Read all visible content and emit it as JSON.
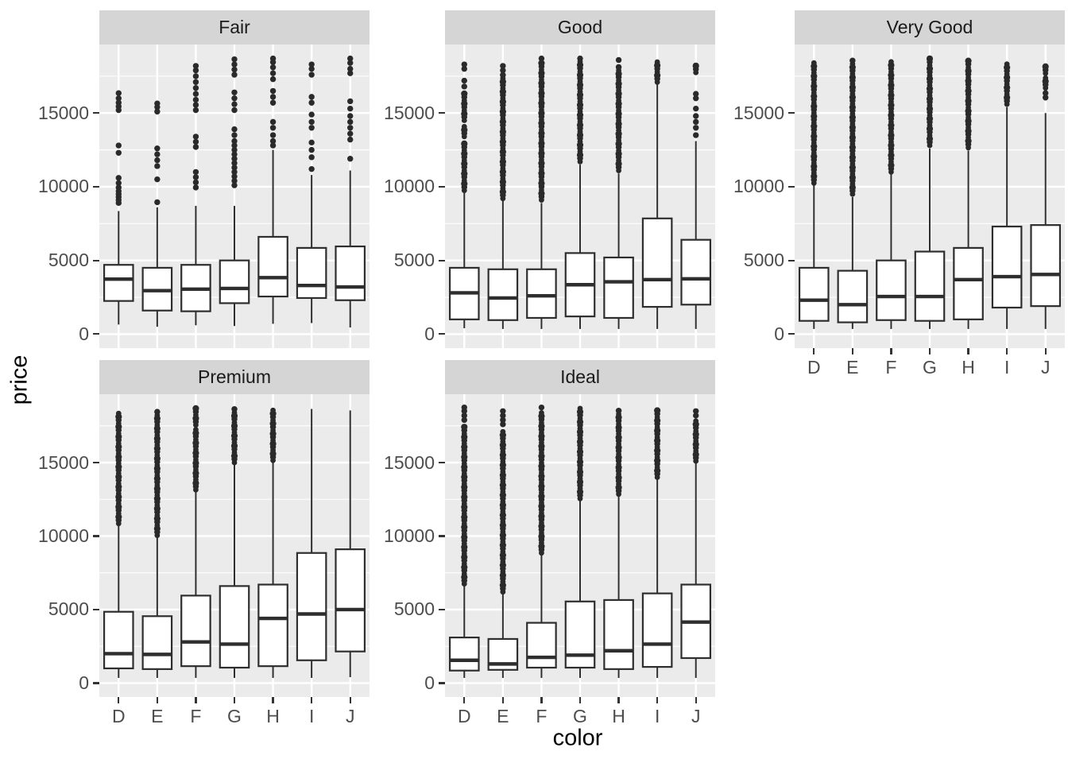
{
  "chart_data": {
    "type": "boxplot",
    "title": "",
    "xlabel": "color",
    "ylabel": "price",
    "categories": [
      "D",
      "E",
      "F",
      "G",
      "H",
      "I",
      "J"
    ],
    "y_ticks": [
      0,
      5000,
      10000,
      15000
    ],
    "y_tick_labels": [
      "0",
      "5000",
      "10000",
      "15000"
    ],
    "y_minor_ticks": [
      2500,
      7500,
      12500,
      17500
    ],
    "ylim": [
      -950,
      19650
    ],
    "grid": "on",
    "legend_position": "none",
    "facet_variable_order": [
      "Fair",
      "Good",
      "Very Good",
      "Premium",
      "Ideal"
    ],
    "facets": [
      {
        "label": "Fair",
        "row": 0,
        "col": 0,
        "boxes": [
          {
            "cat": "D",
            "lo": 650,
            "q1": 2250,
            "med": 3730,
            "q3": 4700,
            "hi": 8350,
            "bands": [],
            "outliers": [
              8900,
              9100,
              9300,
              9500,
              9700,
              9950,
              10250,
              10600,
              12300,
              12800,
              15200,
              15450,
              15700,
              16000,
              16350
            ]
          },
          {
            "cat": "E",
            "lo": 500,
            "q1": 1600,
            "med": 2950,
            "q3": 4500,
            "hi": 8600,
            "bands": [],
            "outliers": [
              8950,
              10500,
              11400,
              11800,
              12200,
              12600,
              15100,
              15400,
              15650
            ]
          },
          {
            "cat": "F",
            "lo": 600,
            "q1": 1550,
            "med": 3050,
            "q3": 4700,
            "hi": 8700,
            "bands": [],
            "outliers": [
              9950,
              10300,
              10650,
              11000,
              12700,
              13050,
              13400,
              15200,
              15550,
              15900,
              16300,
              16700,
              17100,
              17500,
              17900,
              18200
            ]
          },
          {
            "cat": "G",
            "lo": 550,
            "q1": 2100,
            "med": 3100,
            "q3": 5000,
            "hi": 8700,
            "bands": [],
            "outliers": [
              10100,
              10400,
              10700,
              11000,
              11300,
              11600,
              11900,
              12200,
              12500,
              12800,
              13100,
              13500,
              13900,
              15200,
              15600,
              16000,
              16400,
              17600,
              17950,
              18300,
              18650
            ]
          },
          {
            "cat": "H",
            "lo": 700,
            "q1": 2550,
            "med": 3830,
            "q3": 6600,
            "hi": 12500,
            "bands": [],
            "outliers": [
              12800,
              13100,
              13500,
              14000,
              14400,
              15700,
              16100,
              16500,
              17300,
              17700,
              18100,
              18450,
              18700
            ]
          },
          {
            "cat": "I",
            "lo": 750,
            "q1": 2450,
            "med": 3300,
            "q3": 5850,
            "hi": 10800,
            "bands": [],
            "outliers": [
              11200,
              12000,
              12500,
              13000,
              14000,
              14400,
              14900,
              15700,
              16100,
              17600,
              18000,
              18300
            ]
          },
          {
            "cat": "J",
            "lo": 450,
            "q1": 2300,
            "med": 3200,
            "q3": 5950,
            "hi": 11100,
            "bands": [],
            "outliers": [
              11900,
              13200,
              13600,
              14000,
              14400,
              14800,
              15300,
              15800,
              17700,
              18000,
              18400,
              18700
            ]
          }
        ]
      },
      {
        "label": "Good",
        "row": 0,
        "col": 1,
        "boxes": [
          {
            "cat": "D",
            "lo": 400,
            "q1": 1000,
            "med": 2800,
            "q3": 4500,
            "hi": 9600,
            "bands": [
              [
                9750,
                13100
              ],
              [
                13400,
                14100
              ],
              [
                14500,
                16400
              ]
            ],
            "outliers": [
              16800,
              17200,
              18000,
              18300
            ]
          },
          {
            "cat": "E",
            "lo": 350,
            "q1": 950,
            "med": 2450,
            "q3": 4400,
            "hi": 9050,
            "bands": [
              [
                9200,
                17600
              ]
            ],
            "outliers": [
              17900,
              18200
            ]
          },
          {
            "cat": "F",
            "lo": 350,
            "q1": 1100,
            "med": 2600,
            "q3": 4400,
            "hi": 8900,
            "bands": [
              [
                9100,
                18500
              ]
            ],
            "outliers": [
              18700
            ]
          },
          {
            "cat": "G",
            "lo": 350,
            "q1": 1200,
            "med": 3350,
            "q3": 5500,
            "hi": 11500,
            "bands": [
              [
                11700,
                18500
              ]
            ],
            "outliers": [
              18700
            ]
          },
          {
            "cat": "H",
            "lo": 350,
            "q1": 1100,
            "med": 3550,
            "q3": 5200,
            "hi": 10900,
            "bands": [
              [
                11100,
                18300
              ]
            ],
            "outliers": [
              18600
            ]
          },
          {
            "cat": "I",
            "lo": 350,
            "q1": 1850,
            "med": 3700,
            "q3": 7850,
            "hi": 17000,
            "bands": [
              [
                17100,
                18500
              ]
            ],
            "outliers": []
          },
          {
            "cat": "J",
            "lo": 350,
            "q1": 2000,
            "med": 3750,
            "q3": 6400,
            "hi": 13100,
            "bands": [
              [
                17750,
                18300
              ]
            ],
            "outliers": [
              13500,
              14000,
              14400,
              14800,
              15300,
              16000,
              16300
            ]
          }
        ]
      },
      {
        "label": "Very Good",
        "row": 0,
        "col": 2,
        "boxes": [
          {
            "cat": "D",
            "lo": 350,
            "q1": 900,
            "med": 2300,
            "q3": 4500,
            "hi": 10100,
            "bands": [
              [
                10250,
                18600
              ]
            ],
            "outliers": []
          },
          {
            "cat": "E",
            "lo": 350,
            "q1": 800,
            "med": 2000,
            "q3": 4300,
            "hi": 9300,
            "bands": [
              [
                9500,
                18600
              ]
            ],
            "outliers": []
          },
          {
            "cat": "F",
            "lo": 350,
            "q1": 950,
            "med": 2550,
            "q3": 5000,
            "hi": 10850,
            "bands": [
              [
                11000,
                18600
              ]
            ],
            "outliers": []
          },
          {
            "cat": "G",
            "lo": 350,
            "q1": 900,
            "med": 2550,
            "q3": 5600,
            "hi": 12600,
            "bands": [
              [
                12800,
                18700
              ]
            ],
            "outliers": []
          },
          {
            "cat": "H",
            "lo": 350,
            "q1": 1000,
            "med": 3700,
            "q3": 5850,
            "hi": 12450,
            "bands": [
              [
                12650,
                18600
              ]
            ],
            "outliers": []
          },
          {
            "cat": "I",
            "lo": 350,
            "q1": 1800,
            "med": 3900,
            "q3": 7300,
            "hi": 15400,
            "bands": [
              [
                15600,
                18500
              ]
            ],
            "outliers": []
          },
          {
            "cat": "J",
            "lo": 350,
            "q1": 1900,
            "med": 4050,
            "q3": 7400,
            "hi": 15000,
            "bands": [
              [
                16700,
                17400
              ],
              [
                17700,
                18300
              ]
            ],
            "outliers": [
              16050,
              16350
            ]
          }
        ]
      },
      {
        "label": "Premium",
        "row": 1,
        "col": 0,
        "boxes": [
          {
            "cat": "D",
            "lo": 350,
            "q1": 1000,
            "med": 2000,
            "q3": 4850,
            "hi": 10700,
            "bands": [
              [
                10850,
                18500
              ]
            ],
            "outliers": []
          },
          {
            "cat": "E",
            "lo": 350,
            "q1": 950,
            "med": 1950,
            "q3": 4550,
            "hi": 9900,
            "bands": [
              [
                10050,
                18500
              ]
            ],
            "outliers": []
          },
          {
            "cat": "F",
            "lo": 350,
            "q1": 1150,
            "med": 2800,
            "q3": 5950,
            "hi": 13000,
            "bands": [
              [
                13150,
                17250
              ],
              [
                17550,
                18700
              ]
            ],
            "outliers": []
          },
          {
            "cat": "G",
            "lo": 350,
            "q1": 1050,
            "med": 2650,
            "q3": 6600,
            "hi": 14900,
            "bands": [
              [
                15000,
                18700
              ]
            ],
            "outliers": []
          },
          {
            "cat": "H",
            "lo": 350,
            "q1": 1150,
            "med": 4400,
            "q3": 6700,
            "hi": 15000,
            "bands": [
              [
                15150,
                18700
              ]
            ],
            "outliers": []
          },
          {
            "cat": "I",
            "lo": 350,
            "q1": 1550,
            "med": 4700,
            "q3": 8850,
            "hi": 18650,
            "bands": [],
            "outliers": []
          },
          {
            "cat": "J",
            "lo": 400,
            "q1": 2150,
            "med": 5000,
            "q3": 9100,
            "hi": 18550,
            "bands": [],
            "outliers": []
          }
        ]
      },
      {
        "label": "Ideal",
        "row": 1,
        "col": 1,
        "boxes": [
          {
            "cat": "D",
            "lo": 350,
            "q1": 850,
            "med": 1550,
            "q3": 3100,
            "hi": 6600,
            "bands": [
              [
                6750,
                17600
              ]
            ],
            "outliers": [
              17900,
              18200,
              18500,
              18750
            ]
          },
          {
            "cat": "E",
            "lo": 350,
            "q1": 900,
            "med": 1300,
            "q3": 3000,
            "hi": 6050,
            "bands": [
              [
                6200,
                17300
              ]
            ],
            "outliers": [
              17600,
              17900,
              18200,
              18500
            ]
          },
          {
            "cat": "F",
            "lo": 350,
            "q1": 1050,
            "med": 1750,
            "q3": 4100,
            "hi": 8700,
            "bands": [
              [
                8850,
                18500
              ]
            ],
            "outliers": [
              18750
            ]
          },
          {
            "cat": "G",
            "lo": 350,
            "q1": 1050,
            "med": 1900,
            "q3": 5550,
            "hi": 12400,
            "bands": [
              [
                12550,
                18700
              ]
            ],
            "outliers": []
          },
          {
            "cat": "H",
            "lo": 350,
            "q1": 950,
            "med": 2200,
            "q3": 5650,
            "hi": 12700,
            "bands": [
              [
                12850,
                18600
              ]
            ],
            "outliers": []
          },
          {
            "cat": "I",
            "lo": 350,
            "q1": 1100,
            "med": 2650,
            "q3": 6100,
            "hi": 13900,
            "bands": [
              [
                14000,
                18600
              ]
            ],
            "outliers": []
          },
          {
            "cat": "J",
            "lo": 350,
            "q1": 1700,
            "med": 4150,
            "q3": 6700,
            "hi": 15000,
            "bands": [
              [
                15100,
                17900
              ]
            ],
            "outliers": [
              18200,
              18500
            ]
          }
        ]
      }
    ],
    "theme": {
      "panel_bg": "#EBEBEB",
      "strip_bg": "#D5D5D5",
      "strip_text": "#1A1A1A",
      "grid_color": "#FFFFFF",
      "box_stroke": "#2E2E2E",
      "box_fill": "#FFFFFF",
      "outlier_color": "#2A2A2A",
      "tick_label_color": "#4D4D4D",
      "axis_title_color": "#000000",
      "tick_mark_color": "#333333"
    }
  }
}
